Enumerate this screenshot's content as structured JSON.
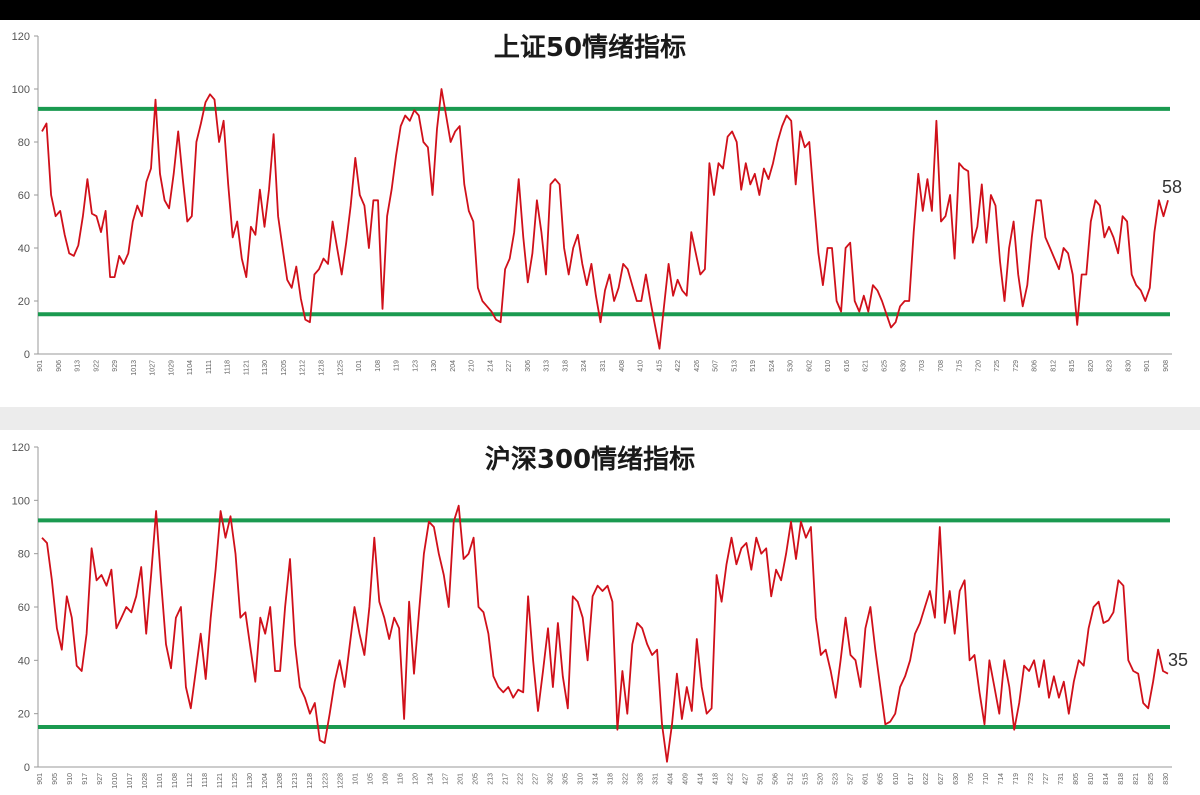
{
  "colors": {
    "line": "#d0101a",
    "band": "#1a9a50",
    "axis": "#9a9a9a",
    "panel": "#ffffff"
  },
  "chart_data": [
    {
      "type": "line",
      "title": "上证50情绪指标",
      "ylim": [
        0,
        120
      ],
      "yticks": [
        0,
        20,
        40,
        60,
        80,
        100,
        120
      ],
      "upper_band": 92.5,
      "lower_band": 15,
      "last_value_label": "58",
      "grid": false,
      "xticks": [
        "901",
        "906",
        "913",
        "922",
        "929",
        "1013",
        "1027",
        "1029",
        "1104",
        "1111",
        "1118",
        "1121",
        "1130",
        "1205",
        "1212",
        "1218",
        "1225",
        "101",
        "108",
        "119",
        "123",
        "130",
        "204",
        "210",
        "214",
        "227",
        "306",
        "313",
        "318",
        "324",
        "331",
        "408",
        "410",
        "415",
        "422",
        "426",
        "507",
        "513",
        "519",
        "524",
        "530",
        "602",
        "610",
        "616",
        "621",
        "625",
        "630",
        "703",
        "708",
        "715",
        "720",
        "725",
        "729",
        "806",
        "812",
        "815",
        "820",
        "823",
        "830",
        "901",
        "908"
      ],
      "series": [
        {
          "values": [
            84,
            87,
            60,
            52,
            54,
            45,
            38,
            37,
            41,
            52,
            66,
            53,
            52,
            46,
            54,
            29,
            29,
            37,
            34,
            38,
            50,
            56,
            52,
            65,
            70,
            96,
            68,
            58,
            55,
            68,
            84,
            66,
            50,
            52,
            80,
            87,
            95,
            98,
            96,
            80,
            88,
            64,
            44,
            50,
            36,
            29,
            48,
            45,
            62,
            48,
            62,
            83,
            52,
            40,
            28,
            25,
            33,
            21,
            13,
            12,
            30,
            32,
            36,
            34,
            50,
            40,
            30,
            42,
            56,
            74,
            60,
            56,
            40,
            58,
            58,
            17,
            52,
            62,
            75,
            86,
            90,
            88,
            92,
            90,
            80,
            78,
            60,
            85,
            100,
            90,
            80,
            84,
            86,
            64,
            54,
            50,
            25,
            20,
            18,
            16,
            13,
            12,
            32,
            36,
            46,
            66,
            44,
            27,
            38,
            58,
            46,
            30,
            64,
            66,
            64,
            40,
            30,
            40,
            45,
            34,
            26,
            34,
            22,
            12,
            24,
            30,
            20,
            25,
            34,
            32,
            26,
            20,
            20,
            30,
            20,
            11,
            2,
            18,
            34,
            22,
            28,
            24,
            22,
            46,
            38,
            30,
            32,
            72,
            60,
            72,
            70,
            82,
            84,
            80,
            62,
            72,
            64,
            68,
            60,
            70,
            66,
            72,
            80,
            86,
            90,
            88,
            64,
            84,
            78,
            80,
            58,
            38,
            26,
            40,
            40,
            20,
            16,
            40,
            42,
            20,
            16,
            22,
            16,
            26,
            24,
            20,
            15,
            10,
            12,
            18,
            20,
            20,
            46,
            68,
            54,
            66,
            54,
            88,
            50,
            52,
            60,
            36,
            72,
            70,
            69,
            42,
            48,
            64,
            42,
            60,
            56,
            35,
            20,
            40,
            50,
            30,
            18,
            26,
            44,
            58,
            58,
            44,
            40,
            36,
            32,
            40,
            38,
            30,
            11,
            30,
            30,
            50,
            58,
            56,
            44,
            48,
            44,
            38,
            52,
            50,
            30,
            26,
            24,
            20,
            25,
            46,
            58,
            52,
            58
          ]
        }
      ]
    },
    {
      "type": "line",
      "title": "沪深300情绪指标",
      "ylim": [
        0,
        120
      ],
      "yticks": [
        0,
        20,
        40,
        60,
        80,
        100,
        120
      ],
      "upper_band": 92.5,
      "lower_band": 15,
      "last_value_label": "35",
      "grid": false,
      "xticks": [
        "901",
        "905",
        "910",
        "917",
        "927",
        "1010",
        "1017",
        "1028",
        "1101",
        "1108",
        "1112",
        "1118",
        "1121",
        "1125",
        "1130",
        "1204",
        "1208",
        "1213",
        "1218",
        "1223",
        "1228",
        "101",
        "105",
        "109",
        "116",
        "120",
        "124",
        "127",
        "201",
        "205",
        "213",
        "217",
        "222",
        "227",
        "302",
        "305",
        "310",
        "314",
        "318",
        "322",
        "328",
        "331",
        "404",
        "409",
        "414",
        "418",
        "422",
        "427",
        "501",
        "506",
        "512",
        "515",
        "520",
        "523",
        "527",
        "601",
        "605",
        "610",
        "617",
        "622",
        "627",
        "630",
        "705",
        "710",
        "714",
        "719",
        "723",
        "727",
        "731",
        "805",
        "810",
        "814",
        "818",
        "821",
        "825",
        "830"
      ],
      "series": [
        {
          "values": [
            86,
            84,
            70,
            52,
            44,
            64,
            56,
            38,
            36,
            50,
            82,
            70,
            72,
            68,
            74,
            52,
            56,
            60,
            58,
            64,
            75,
            50,
            72,
            96,
            70,
            46,
            37,
            56,
            60,
            30,
            22,
            36,
            50,
            33,
            56,
            74,
            96,
            86,
            94,
            80,
            56,
            58,
            45,
            32,
            56,
            50,
            60,
            36,
            36,
            60,
            78,
            46,
            30,
            26,
            20,
            24,
            10,
            9,
            20,
            32,
            40,
            30,
            45,
            60,
            50,
            42,
            60,
            86,
            62,
            56,
            48,
            56,
            52,
            18,
            62,
            35,
            58,
            80,
            92,
            90,
            80,
            72,
            60,
            92,
            98,
            78,
            80,
            86,
            60,
            58,
            50,
            34,
            30,
            28,
            30,
            26,
            29,
            28,
            64,
            40,
            21,
            36,
            52,
            30,
            54,
            34,
            22,
            64,
            62,
            56,
            40,
            64,
            68,
            66,
            68,
            62,
            14,
            36,
            20,
            46,
            54,
            52,
            46,
            42,
            44,
            16,
            2,
            16,
            35,
            18,
            30,
            21,
            48,
            30,
            20,
            22,
            72,
            62,
            76,
            86,
            76,
            82,
            84,
            74,
            86,
            80,
            82,
            64,
            74,
            70,
            80,
            92,
            78,
            92,
            86,
            90,
            56,
            42,
            44,
            36,
            26,
            40,
            56,
            42,
            40,
            30,
            52,
            60,
            44,
            30,
            16,
            17,
            20,
            30,
            34,
            40,
            50,
            54,
            60,
            66,
            56,
            90,
            54,
            66,
            50,
            66,
            70,
            40,
            42,
            28,
            16,
            40,
            30,
            20,
            40,
            30,
            14,
            24,
            38,
            36,
            40,
            30,
            40,
            26,
            34,
            26,
            32,
            20,
            32,
            40,
            38,
            52,
            60,
            62,
            54,
            55,
            58,
            70,
            68,
            40,
            36,
            35,
            24,
            22,
            32,
            44,
            36,
            35
          ]
        }
      ]
    }
  ]
}
